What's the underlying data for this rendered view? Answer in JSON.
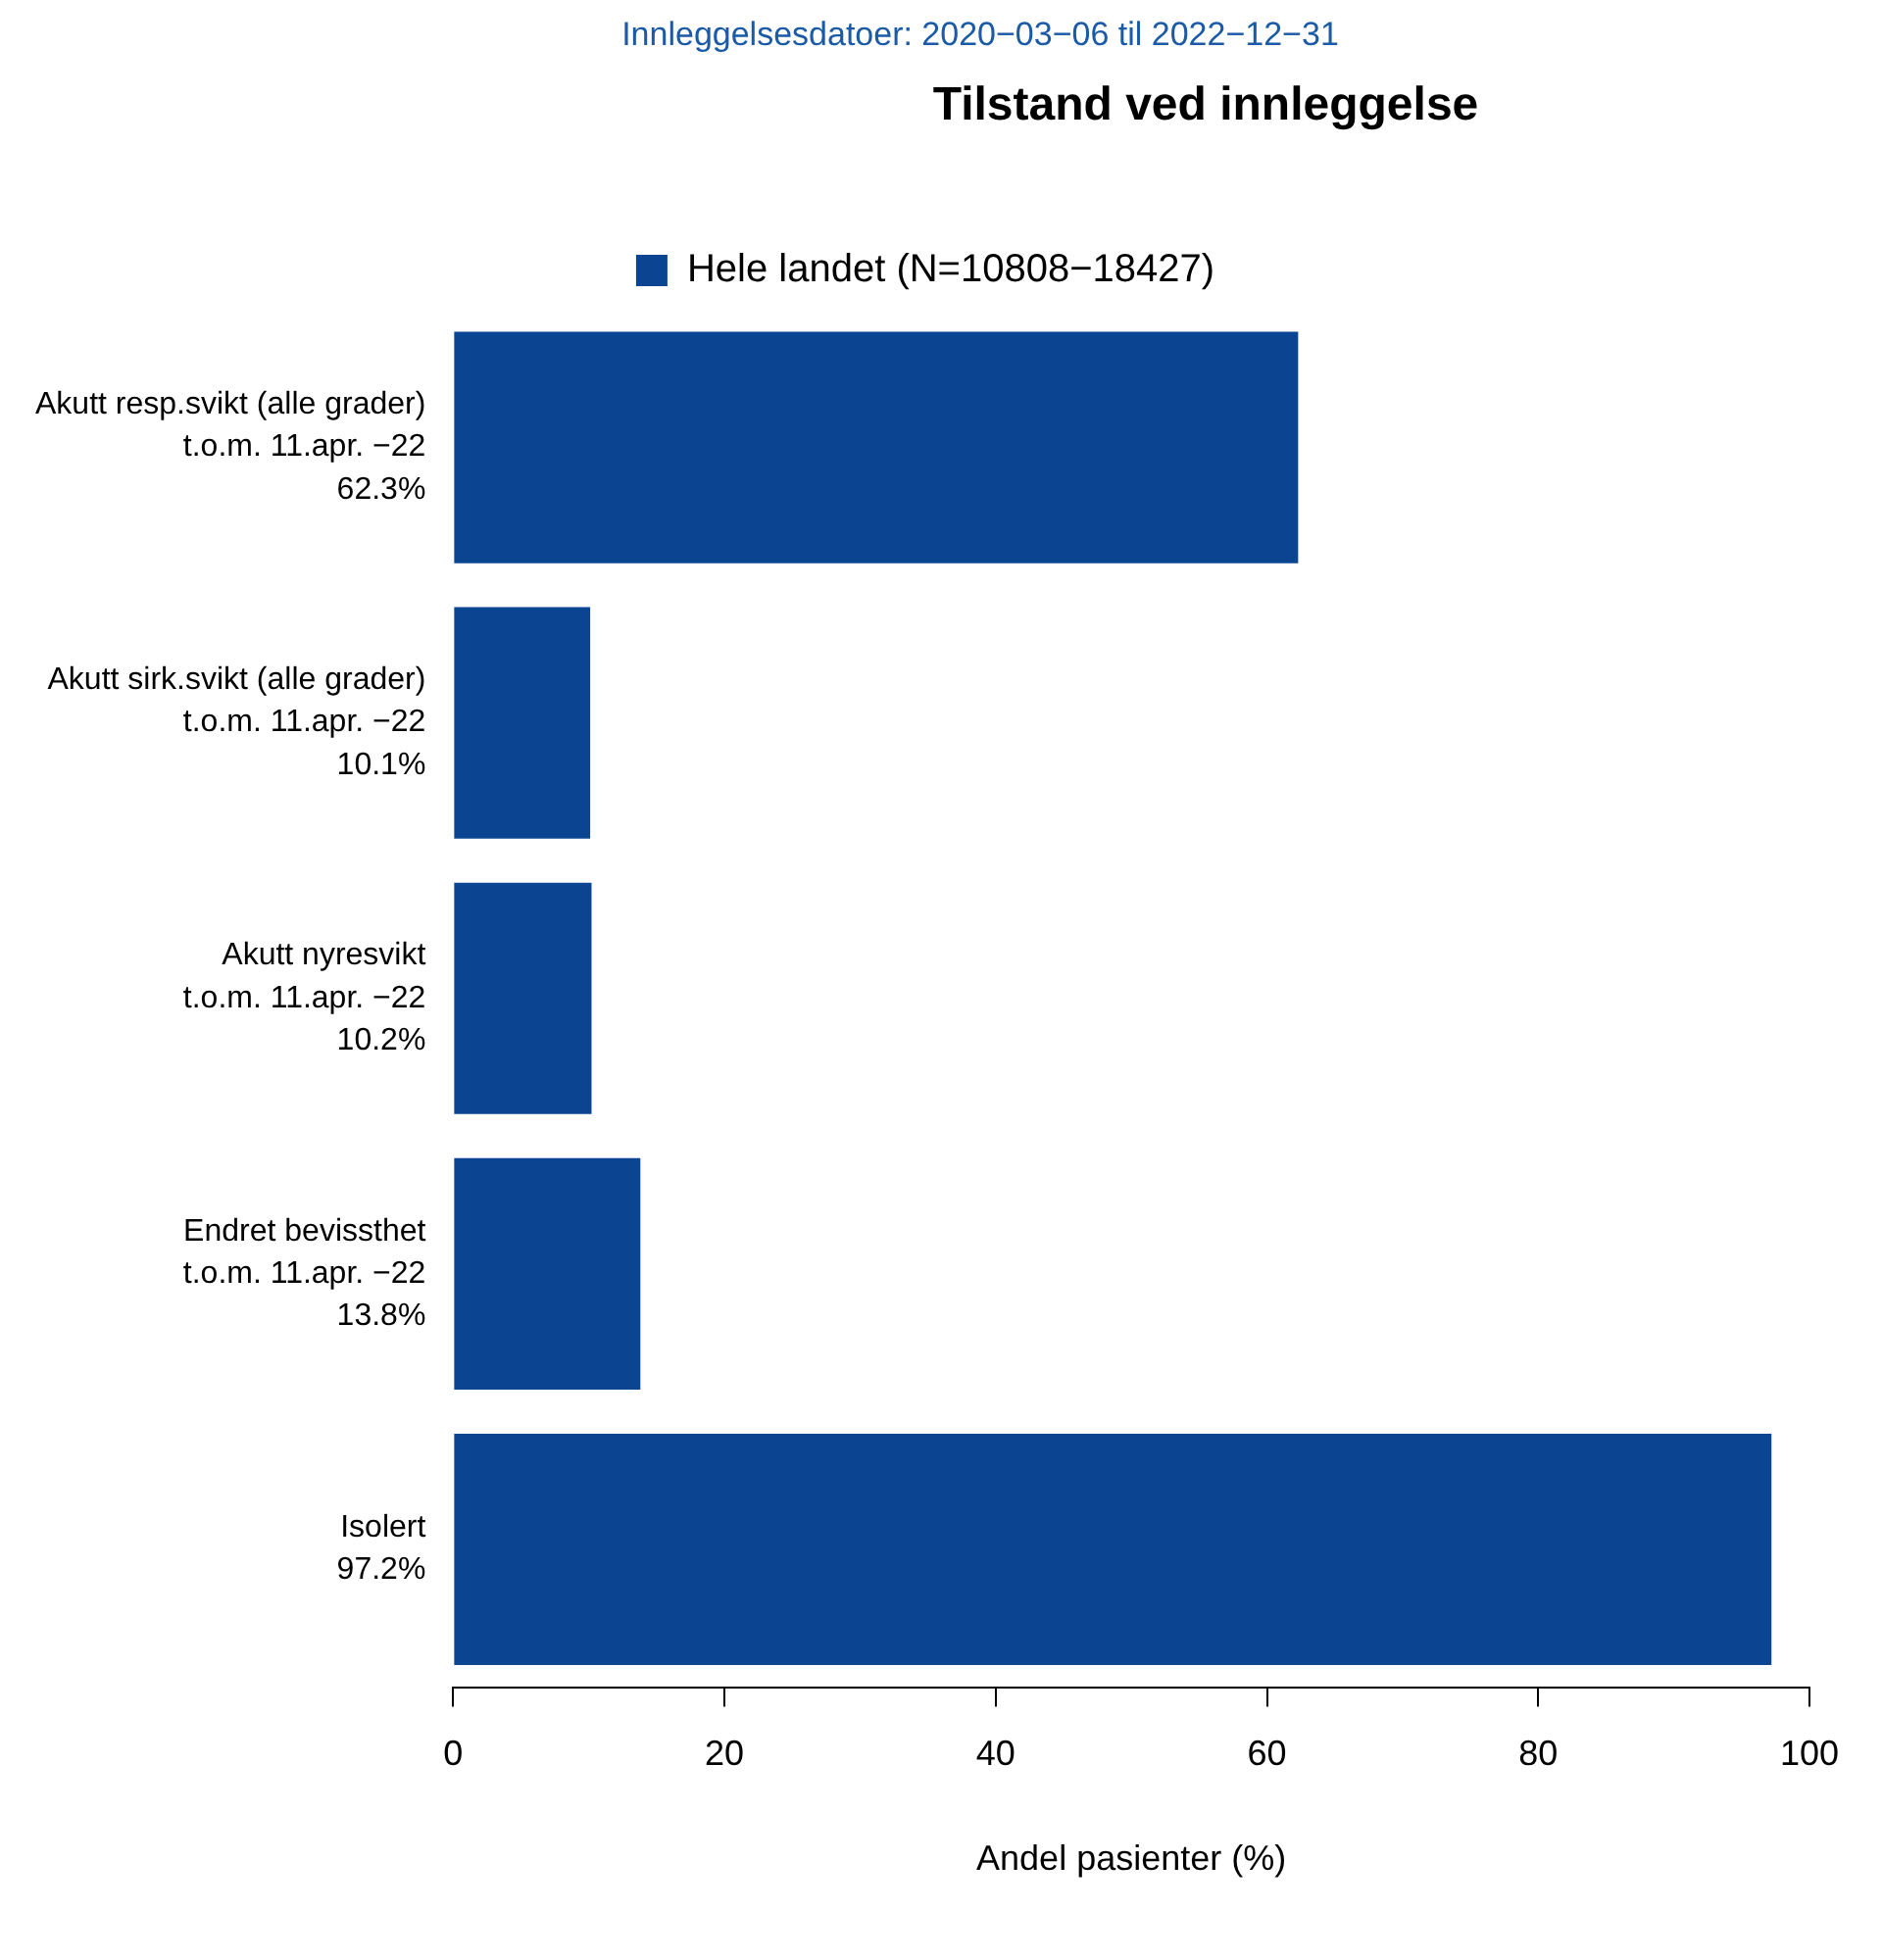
{
  "chart_data": {
    "type": "bar",
    "orientation": "horizontal",
    "subtitle": "Innleggelsesdatoer: 2020−03−06 til 2022−12−31",
    "title": "Tilstand ved innleggelse",
    "xlabel": "Andel pasienter (%)",
    "categories": [
      "Akutt resp.svikt (alle grader)\nt.o.m. 11.apr. −22",
      "Akutt sirk.svikt (alle grader)\nt.o.m. 11.apr. −22",
      "Akutt nyresvikt\nt.o.m. 11.apr. −22",
      "Endret bevissthet\nt.o.m. 11.apr. −22",
      "Isolert"
    ],
    "series": [
      {
        "name": "Hele landet (N=10808−18427)",
        "color": "#0b4592",
        "values": [
          62.3,
          10.1,
          10.2,
          13.8,
          97.2
        ],
        "value_labels": [
          "62.3%",
          "10.1%",
          "10.2%",
          "13.8%",
          "97.2%"
        ]
      }
    ],
    "xlim": [
      0,
      100
    ],
    "xticks": [
      0,
      20,
      40,
      60,
      80,
      100
    ],
    "legend": "top"
  }
}
